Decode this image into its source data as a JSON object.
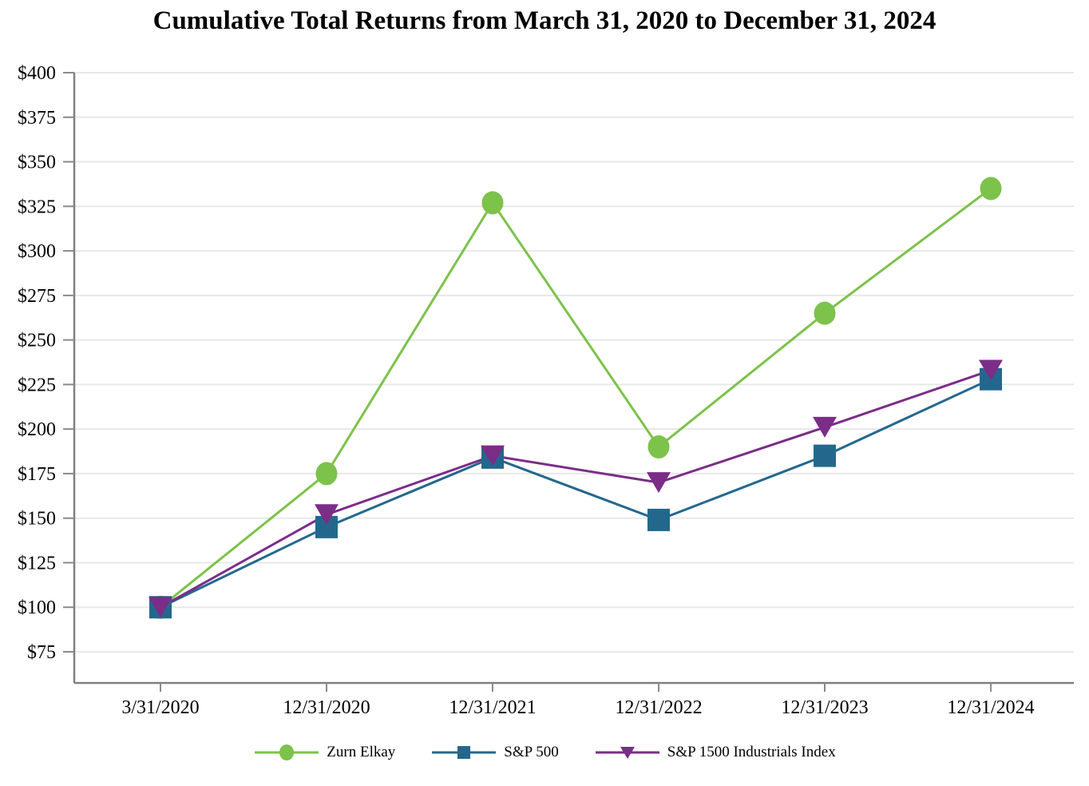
{
  "chart_data": {
    "type": "line",
    "title": "Cumulative Total Returns from March 31, 2020 to December 31, 2024",
    "xlabel": "",
    "ylabel": "",
    "x_categories": [
      "3/31/2020",
      "12/31/2020",
      "12/31/2021",
      "12/31/2022",
      "12/31/2023",
      "12/31/2024"
    ],
    "y_ticks": [
      400,
      375,
      350,
      325,
      300,
      275,
      250,
      225,
      200,
      175,
      150,
      125,
      100,
      75
    ],
    "y_tick_labels": [
      "$400",
      "$375",
      "$350",
      "$325",
      "$300",
      "$275",
      "$250",
      "$225",
      "$200",
      "$175",
      "$150",
      "$125",
      "$100",
      "$75"
    ],
    "ylim": [
      75,
      400
    ],
    "grid": true,
    "legend_position": "bottom",
    "series": [
      {
        "name": "Zurn Elkay",
        "marker": "circle",
        "color": "#7DC24B",
        "values": [
          100,
          175,
          327,
          190,
          265,
          335
        ]
      },
      {
        "name": "S&P 500",
        "marker": "square",
        "color": "#23688C",
        "values": [
          100,
          145,
          184,
          149,
          185,
          228
        ]
      },
      {
        "name": "S&P 1500 Industrials Index",
        "marker": "triangle-down",
        "color": "#7B2D88",
        "values": [
          100,
          152,
          185,
          170,
          201,
          233
        ]
      }
    ]
  },
  "style": {
    "grid_color": "#E8E8E8",
    "axis_color": "#808080",
    "tick_color": "#8A8A8A",
    "text_color": "#000000"
  }
}
